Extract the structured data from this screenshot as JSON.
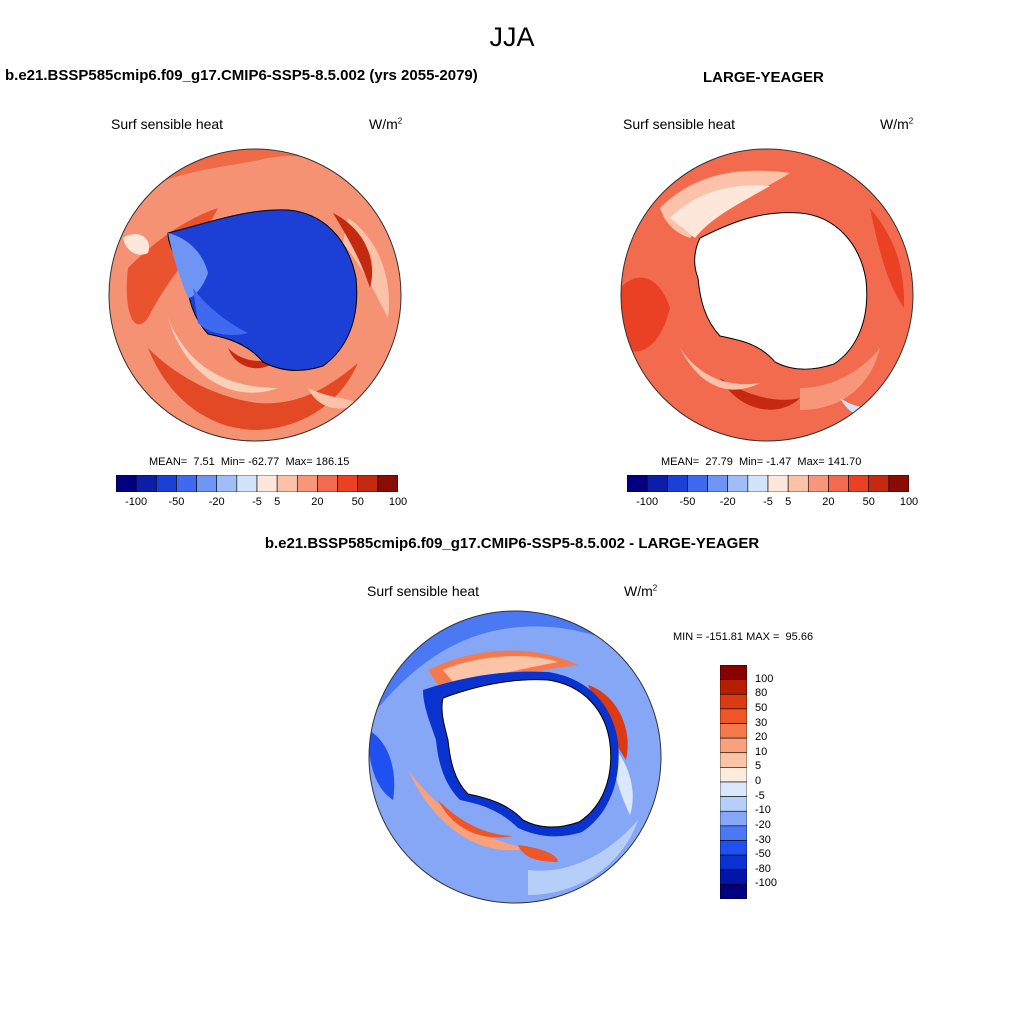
{
  "figure": {
    "title": "JJA"
  },
  "panels": [
    {
      "title": "b.e21.BSSP585cmip6.f09_g17.CMIP6-SSP5-8.5.002 (yrs 2055-2079)",
      "left_label": "Surf sensible heat",
      "units": "W/m",
      "units_sup": "2",
      "stats": {
        "mean_label": "MEAN=",
        "mean": "7.51",
        "min_label": "Min=",
        "min": "-62.77",
        "max_label": "Max=",
        "max": "186.15"
      }
    },
    {
      "title": "LARGE-YEAGER",
      "left_label": "Surf sensible heat",
      "units": "W/m",
      "units_sup": "2",
      "stats": {
        "mean_label": "MEAN=",
        "mean": "27.79",
        "min_label": "Min=",
        "min": "-1.47",
        "max_label": "Max=",
        "max": "141.70"
      }
    },
    {
      "title": "b.e21.BSSP585cmip6.f09_g17.CMIP6-SSP5-8.5.002 - LARGE-YEAGER",
      "left_label": "Surf sensible heat",
      "units": "W/m",
      "units_sup": "2",
      "stats": {
        "min_label": "MIN =",
        "min": "-151.81",
        "max_label": "MAX =",
        "max": "95.66"
      }
    }
  ],
  "colorbars": {
    "horizontal": {
      "colors": [
        "#000080",
        "#0c1ea8",
        "#1c3fd6",
        "#3f6af0",
        "#6e95f3",
        "#9fbdf7",
        "#d2e4fa",
        "#fde7da",
        "#fbc2a9",
        "#f8967a",
        "#f26b4e",
        "#ea4024",
        "#c52a10",
        "#8a0b00"
      ],
      "tick_labels": [
        "-100",
        "-50",
        "-20",
        "-5",
        "5",
        "20",
        "50",
        "100"
      ],
      "tick_boundaries": [
        1,
        3,
        5,
        7,
        8,
        10,
        12,
        14
      ]
    },
    "vertical": {
      "colors": [
        "#000080",
        "#0014a8",
        "#0a32cf",
        "#2050f0",
        "#4b78f3",
        "#86a7f5",
        "#b6cff8",
        "#dbe8fb",
        "#fdebdd",
        "#fbc4a6",
        "#f9a07c",
        "#f47a4d",
        "#ee5628",
        "#dc3a12",
        "#b51f00",
        "#860300"
      ],
      "tick_labels": [
        "100",
        "80",
        "50",
        "30",
        "20",
        "10",
        "5",
        "0",
        "-5",
        "-10",
        "-20",
        "-30",
        "-50",
        "-80",
        "-100"
      ]
    }
  }
}
